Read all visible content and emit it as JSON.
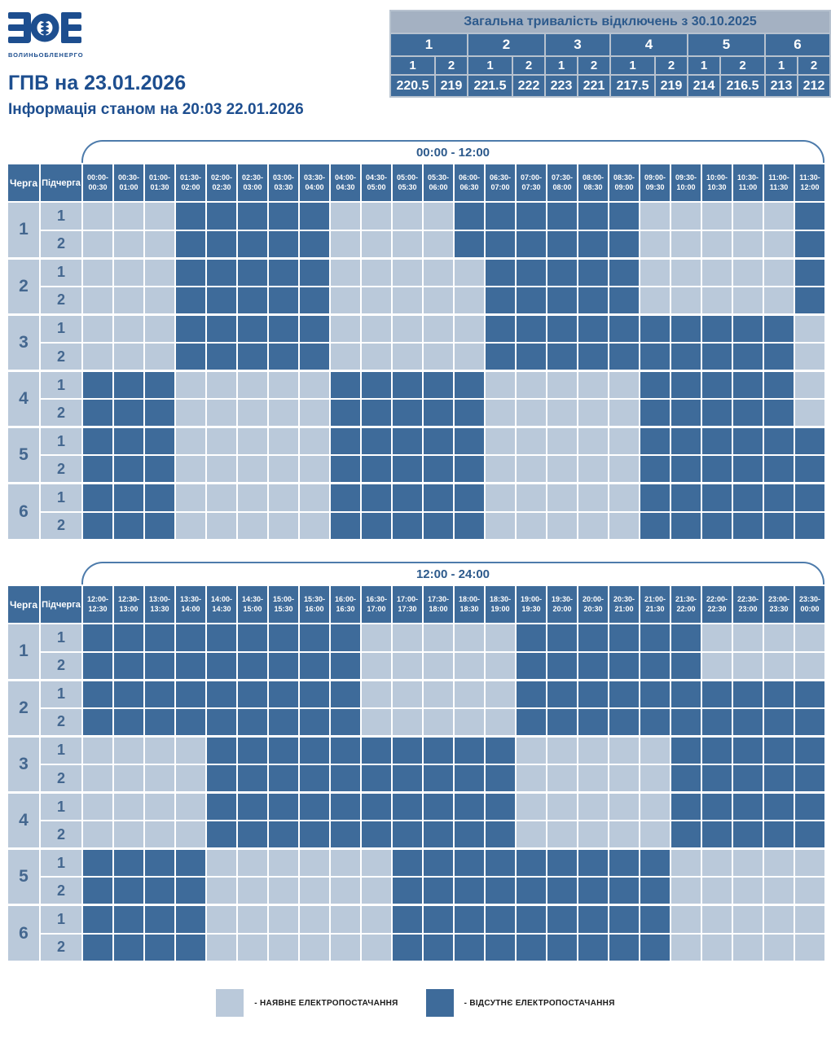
{
  "logo": {
    "text": "ЗОЕ",
    "subtext": "ВОЛИНЬОБЛЕНЕРГО"
  },
  "header": {
    "title": "ГПВ на 23.01.2026",
    "subtitle": "Інформація станом на 20:03 22.01.2026"
  },
  "summary": {
    "title": "Загальна тривалість відключень з 30.10.2025",
    "queues": [
      "1",
      "2",
      "3",
      "4",
      "5",
      "6"
    ],
    "subqueues": [
      "1",
      "2",
      "1",
      "2",
      "1",
      "2",
      "1",
      "2",
      "1",
      "2",
      "1",
      "2"
    ],
    "values": [
      "220.5",
      "219",
      "221.5",
      "222",
      "223",
      "221",
      "217.5",
      "219",
      "214",
      "216.5",
      "213",
      "212"
    ]
  },
  "grid_labels": {
    "queue_col": "Черга",
    "subqueue_col": "Підчерга"
  },
  "legend": {
    "available": "- НАЯВНЕ ЕЛЕКТРОПОСТАЧАННЯ",
    "absent": "- ВІДСУТНЄ ЕЛЕКТРОПОСТАЧАННЯ"
  },
  "colors": {
    "available_cell": "#bac9da",
    "absent_cell": "#3e6b9a",
    "accent_blue": "#1d4e8f",
    "summary_title_bg": "#a4b1c2"
  },
  "chart_data": [
    {
      "type": "heatmap",
      "title": "00:00 - 12:00",
      "encoding": "1 = відсутнє електропостачання (dark cell), 0 = наявне електропостачання (light cell)",
      "x": [
        "00:00-00:30",
        "00:30-01:00",
        "01:00-01:30",
        "01:30-02:00",
        "02:00-02:30",
        "02:30-03:00",
        "03:00-03:30",
        "03:30-04:00",
        "04:00-04:30",
        "04:30-05:00",
        "05:00-05:30",
        "05:30-06:00",
        "06:00-06:30",
        "06:30-07:00",
        "07:00-07:30",
        "07:30-08:00",
        "08:00-08:30",
        "08:30-09:00",
        "09:00-09:30",
        "09:30-10:00",
        "10:00-10:30",
        "10:30-11:00",
        "11:00-11:30",
        "11:30-12:00"
      ],
      "rows": [
        {
          "queue": "1",
          "subqueue": "1",
          "slots": "000111110000111111000001"
        },
        {
          "queue": "1",
          "subqueue": "2",
          "slots": "000111110000111111000001"
        },
        {
          "queue": "2",
          "subqueue": "1",
          "slots": "000111110000011111000001"
        },
        {
          "queue": "2",
          "subqueue": "2",
          "slots": "000111110000011111000001"
        },
        {
          "queue": "3",
          "subqueue": "1",
          "slots": "000111110000011111111110"
        },
        {
          "queue": "3",
          "subqueue": "2",
          "slots": "000111110000011111111110"
        },
        {
          "queue": "4",
          "subqueue": "1",
          "slots": "111000001111100000111110"
        },
        {
          "queue": "4",
          "subqueue": "2",
          "slots": "111000001111100000111110"
        },
        {
          "queue": "5",
          "subqueue": "1",
          "slots": "111000001111100000111111"
        },
        {
          "queue": "5",
          "subqueue": "2",
          "slots": "111000001111100000111111"
        },
        {
          "queue": "6",
          "subqueue": "1",
          "slots": "111000001111100000111111"
        },
        {
          "queue": "6",
          "subqueue": "2",
          "slots": "111000001111100000111111"
        }
      ]
    },
    {
      "type": "heatmap",
      "title": "12:00 - 24:00",
      "encoding": "1 = відсутнє електропостачання (dark cell), 0 = наявне електропостачання (light cell)",
      "x": [
        "12:00-12:30",
        "12:30-13:00",
        "13:00-13:30",
        "13:30-14:00",
        "14:00-14:30",
        "14:30-15:00",
        "15:00-15:30",
        "15:30-16:00",
        "16:00-16:30",
        "16:30-17:00",
        "17:00-17:30",
        "17:30-18:00",
        "18:00-18:30",
        "18:30-19:00",
        "19:00-19:30",
        "19:30-20:00",
        "20:00-20:30",
        "20:30-21:00",
        "21:00-21:30",
        "21:30-22:00",
        "22:00-22:30",
        "22:30-23:00",
        "23:00-23:30",
        "23:30-00:00"
      ],
      "rows": [
        {
          "queue": "1",
          "subqueue": "1",
          "slots": "111111111000001111110000"
        },
        {
          "queue": "1",
          "subqueue": "2",
          "slots": "111111111000001111110000"
        },
        {
          "queue": "2",
          "subqueue": "1",
          "slots": "111111111000001111111111"
        },
        {
          "queue": "2",
          "subqueue": "2",
          "slots": "111111111000001111111111"
        },
        {
          "queue": "3",
          "subqueue": "1",
          "slots": "000011111111110000011111"
        },
        {
          "queue": "3",
          "subqueue": "2",
          "slots": "000011111111110000011111"
        },
        {
          "queue": "4",
          "subqueue": "1",
          "slots": "000011111111110000011111"
        },
        {
          "queue": "4",
          "subqueue": "2",
          "slots": "000011111111110000011111"
        },
        {
          "queue": "5",
          "subqueue": "1",
          "slots": "111100000011111111100000"
        },
        {
          "queue": "5",
          "subqueue": "2",
          "slots": "111100000011111111100000"
        },
        {
          "queue": "6",
          "subqueue": "1",
          "slots": "111100000011111111100000"
        },
        {
          "queue": "6",
          "subqueue": "2",
          "slots": "111100000011111111100000"
        }
      ]
    }
  ]
}
